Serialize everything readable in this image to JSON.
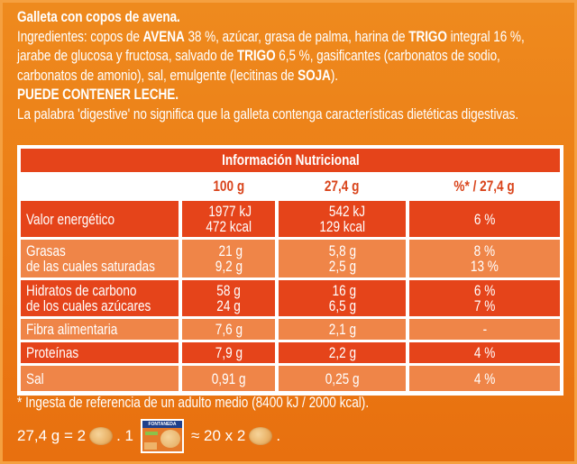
{
  "intro": {
    "title": "Galleta con copos de avena.",
    "ingredients_lines": [
      [
        {
          "t": "Ingredientes: copos de ",
          "b": false
        },
        {
          "t": "AVENA",
          "b": true
        },
        {
          "t": " 38 %, azúcar, grasa de palma, harina de ",
          "b": false
        },
        {
          "t": "TRIGO",
          "b": true
        },
        {
          "t": " integral 16 %,",
          "b": false
        }
      ],
      [
        {
          "t": "jarabe de glucosa y fructosa, salvado de ",
          "b": false
        },
        {
          "t": "TRIGO",
          "b": true
        },
        {
          "t": " 6,5 %, gasificantes (carbonatos de sodio,",
          "b": false
        }
      ],
      [
        {
          "t": "carbonatos de amonio), sal, emulgente (lecitinas de ",
          "b": false
        },
        {
          "t": "SOJA",
          "b": true
        },
        {
          "t": ").",
          "b": false
        }
      ]
    ],
    "allergen_warning": "PUEDE CONTENER LECHE.",
    "disclaimer": "La palabra 'digestive' no significa que la galleta contenga características dietéticas digestivas."
  },
  "table": {
    "title": "Información Nutricional",
    "headers": [
      "",
      "100 g",
      "27,4 g",
      "%* / 27,4 g"
    ],
    "rows": [
      {
        "label": "Valor energético",
        "per100": "1977 kJ\n472 kcal",
        "perPortion": "542 kJ\n129 kcal",
        "ri": "6 %",
        "shade": "dark"
      },
      {
        "label": "Grasas\nde las cuales saturadas",
        "per100": "21 g\n9,2 g",
        "perPortion": "5,8 g\n2,5 g",
        "ri": "8 %\n13 %",
        "shade": "light"
      },
      {
        "label": "Hidratos de carbono\nde los cuales azúcares",
        "per100": "58 g\n24 g",
        "perPortion": "16 g\n6,5 g",
        "ri": "6 %\n7 %",
        "shade": "dark"
      },
      {
        "label": "Fibra alimentaria",
        "per100": "7,6 g",
        "perPortion": "2,1 g",
        "ri": "-",
        "shade": "light"
      },
      {
        "label": "Proteínas",
        "per100": "7,9 g",
        "perPortion": "2,2 g",
        "ri": "4 %",
        "shade": "dark"
      },
      {
        "label": "Sal",
        "per100": "0,91 g",
        "perPortion": "0,25 g",
        "ri": "4 %",
        "shade": "light"
      }
    ]
  },
  "footnote": "* Ingesta de referencia de un adulto medio (8400 kJ / 2000 kcal).",
  "portion": {
    "part1": "27,4 g = 2",
    "part2": ". 1",
    "part3": "≈ 20 x 2",
    "part4": ".",
    "pack_brand": "FONTANEDA",
    "icons": [
      "cookie-icon",
      "package-icon",
      "cookie-icon"
    ]
  },
  "colors": {
    "background": "#ec7e16",
    "dark_row": "#e5441a",
    "light_row": "#ef8548",
    "header_text": "#d9441b",
    "text": "#ffffff"
  }
}
